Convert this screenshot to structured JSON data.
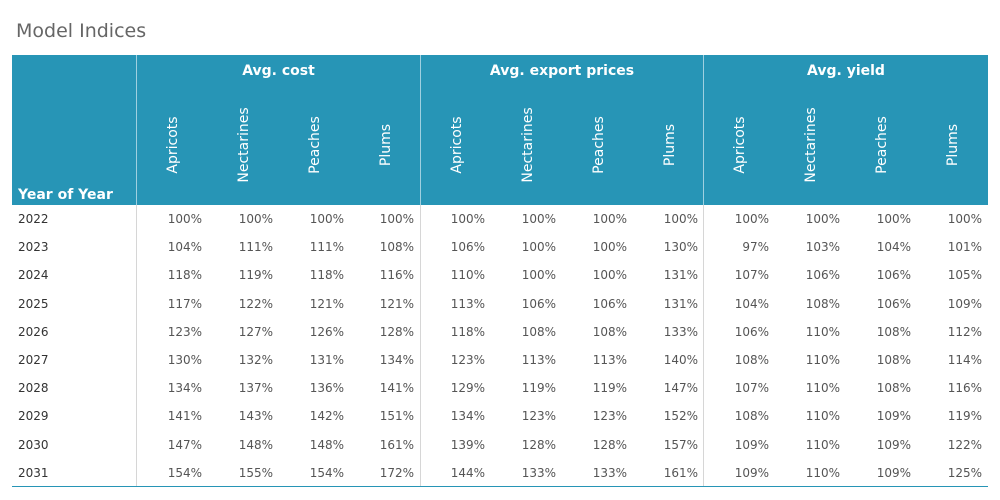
{
  "title": "Model Indices",
  "row_header_label": "Year of Year",
  "groups": [
    {
      "label": "Avg. cost"
    },
    {
      "label": "Avg. export prices"
    },
    {
      "label": "Avg. yield"
    }
  ],
  "columns": [
    "Apricots",
    "Nectarines",
    "Peaches",
    "Plums"
  ],
  "colors": {
    "header_bg": "#2795b6",
    "header_text": "#ffffff"
  },
  "chart_data": {
    "type": "table",
    "title": "Model Indices",
    "row_header": "Year of Year",
    "groups": [
      "Avg. cost",
      "Avg. export prices",
      "Avg. yield"
    ],
    "columns": [
      "Apricots",
      "Nectarines",
      "Peaches",
      "Plums"
    ],
    "rows": [
      {
        "year": "2022",
        "values": [
          "100%",
          "100%",
          "100%",
          "100%",
          "100%",
          "100%",
          "100%",
          "100%",
          "100%",
          "100%",
          "100%",
          "100%"
        ]
      },
      {
        "year": "2023",
        "values": [
          "104%",
          "111%",
          "111%",
          "108%",
          "106%",
          "100%",
          "100%",
          "130%",
          "97%",
          "103%",
          "104%",
          "101%"
        ]
      },
      {
        "year": "2024",
        "values": [
          "118%",
          "119%",
          "118%",
          "116%",
          "110%",
          "100%",
          "100%",
          "131%",
          "107%",
          "106%",
          "106%",
          "105%"
        ]
      },
      {
        "year": "2025",
        "values": [
          "117%",
          "122%",
          "121%",
          "121%",
          "113%",
          "106%",
          "106%",
          "131%",
          "104%",
          "108%",
          "106%",
          "109%"
        ]
      },
      {
        "year": "2026",
        "values": [
          "123%",
          "127%",
          "126%",
          "128%",
          "118%",
          "108%",
          "108%",
          "133%",
          "106%",
          "110%",
          "108%",
          "112%"
        ]
      },
      {
        "year": "2027",
        "values": [
          "130%",
          "132%",
          "131%",
          "134%",
          "123%",
          "113%",
          "113%",
          "140%",
          "108%",
          "110%",
          "108%",
          "114%"
        ]
      },
      {
        "year": "2028",
        "values": [
          "134%",
          "137%",
          "136%",
          "141%",
          "129%",
          "119%",
          "119%",
          "147%",
          "107%",
          "110%",
          "108%",
          "116%"
        ]
      },
      {
        "year": "2029",
        "values": [
          "141%",
          "143%",
          "142%",
          "151%",
          "134%",
          "123%",
          "123%",
          "152%",
          "108%",
          "110%",
          "109%",
          "119%"
        ]
      },
      {
        "year": "2030",
        "values": [
          "147%",
          "148%",
          "148%",
          "161%",
          "139%",
          "128%",
          "128%",
          "157%",
          "109%",
          "110%",
          "109%",
          "122%"
        ]
      },
      {
        "year": "2031",
        "values": [
          "154%",
          "155%",
          "154%",
          "172%",
          "144%",
          "133%",
          "133%",
          "161%",
          "109%",
          "110%",
          "109%",
          "125%"
        ]
      }
    ]
  }
}
